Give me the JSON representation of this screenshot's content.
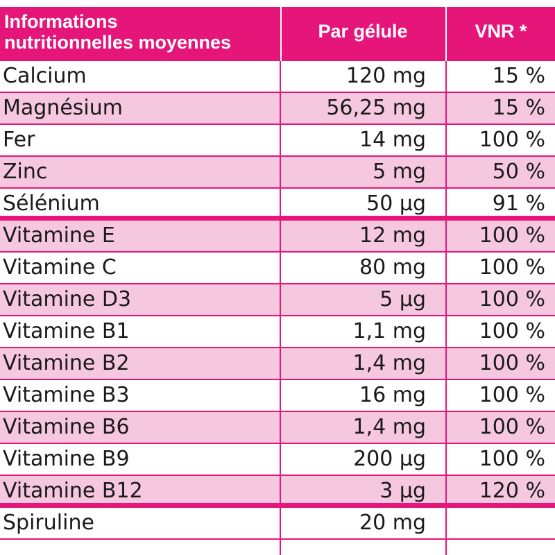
{
  "header": {
    "col1_line1": "Informations",
    "col1_line2": "nutritionnelles moyennes",
    "col2": "Par gélule",
    "col3": "VNR *"
  },
  "colors": {
    "accent": "#e6157a",
    "row_alt": "#f6c8df"
  },
  "rows": [
    {
      "name": "Calcium",
      "amount": "120 mg",
      "vnr": "15 %"
    },
    {
      "name": "Magnésium",
      "amount": "56,25 mg",
      "vnr": "15 %"
    },
    {
      "name": "Fer",
      "amount": "14 mg",
      "vnr": "100 %"
    },
    {
      "name": "Zinc",
      "amount": "5 mg",
      "vnr": "50 %"
    },
    {
      "name": "Sélénium",
      "amount": "50 µg",
      "vnr": "91 %"
    },
    {
      "name": "Vitamine E",
      "amount": "12 mg",
      "vnr": "100 %"
    },
    {
      "name": "Vitamine C",
      "amount": "80 mg",
      "vnr": "100 %"
    },
    {
      "name": "Vitamine D3",
      "amount": "5 µg",
      "vnr": "100 %"
    },
    {
      "name": "Vitamine B1",
      "amount": "1,1 mg",
      "vnr": "100 %"
    },
    {
      "name": "Vitamine B2",
      "amount": "1,4 mg",
      "vnr": "100 %"
    },
    {
      "name": "Vitamine B3",
      "amount": "16 mg",
      "vnr": "100 %"
    },
    {
      "name": "Vitamine B6",
      "amount": "1,4 mg",
      "vnr": "100 %"
    },
    {
      "name": "Vitamine B9",
      "amount": "200 µg",
      "vnr": "100 %"
    },
    {
      "name": "Vitamine B12",
      "amount": "3 µg",
      "vnr": "120 %"
    },
    {
      "name": "Spiruline",
      "amount": "20 mg",
      "vnr": ""
    }
  ]
}
